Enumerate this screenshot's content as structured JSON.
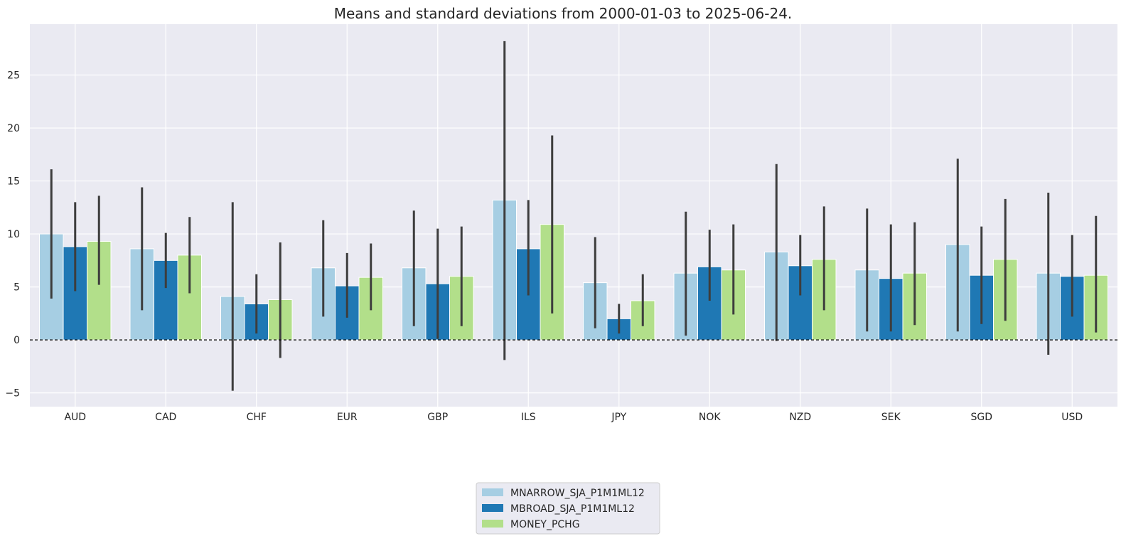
{
  "chart_data": {
    "type": "bar",
    "title": "Means and standard deviations from 2000-01-03 to 2025-06-24.",
    "xlabel": "",
    "ylabel": "",
    "categories": [
      "AUD",
      "CAD",
      "CHF",
      "EUR",
      "GBP",
      "ILS",
      "JPY",
      "NOK",
      "NZD",
      "SEK",
      "SGD",
      "USD"
    ],
    "yticks": [
      -5,
      0,
      5,
      10,
      15,
      20,
      25
    ],
    "ylim": [
      -6.3,
      29.8
    ],
    "grid": true,
    "legend_position": "bottom-center",
    "zero_line": true,
    "series": [
      {
        "name": "MNARROW_SJA_P1M1ML12",
        "color": "#a6cee3",
        "values": [
          10.0,
          8.6,
          4.1,
          6.8,
          6.8,
          13.2,
          5.4,
          6.3,
          8.3,
          6.6,
          9.0,
          6.3
        ],
        "err_low": [
          3.9,
          2.8,
          -4.8,
          2.2,
          1.3,
          -1.9,
          1.1,
          0.4,
          -0.1,
          0.8,
          0.8,
          -1.4
        ],
        "err_high": [
          16.1,
          14.4,
          13.0,
          11.3,
          12.2,
          28.2,
          9.7,
          12.1,
          16.6,
          12.4,
          17.1,
          13.9
        ]
      },
      {
        "name": "MBROAD_SJA_P1M1ML12",
        "color": "#1f78b4",
        "values": [
          8.8,
          7.5,
          3.4,
          5.1,
          5.3,
          8.6,
          2.0,
          6.9,
          7.0,
          5.8,
          6.1,
          6.0
        ],
        "err_low": [
          4.6,
          4.9,
          0.6,
          2.1,
          0.1,
          4.2,
          0.6,
          3.7,
          4.2,
          0.8,
          1.5,
          2.2
        ],
        "err_high": [
          13.0,
          10.1,
          6.2,
          8.2,
          10.5,
          13.2,
          3.4,
          10.4,
          9.9,
          10.9,
          10.7,
          9.9
        ]
      },
      {
        "name": "MONEY_PCHG",
        "color": "#b2df8a",
        "values": [
          9.3,
          8.0,
          3.8,
          5.9,
          6.0,
          10.9,
          3.7,
          6.6,
          7.6,
          6.3,
          7.6,
          6.1
        ],
        "err_low": [
          5.2,
          4.4,
          -1.7,
          2.8,
          1.3,
          2.5,
          1.3,
          2.4,
          2.8,
          1.4,
          1.8,
          0.7
        ],
        "err_high": [
          13.6,
          11.6,
          9.2,
          9.1,
          10.7,
          19.3,
          6.2,
          10.9,
          12.6,
          11.1,
          13.3,
          11.7
        ]
      }
    ]
  }
}
